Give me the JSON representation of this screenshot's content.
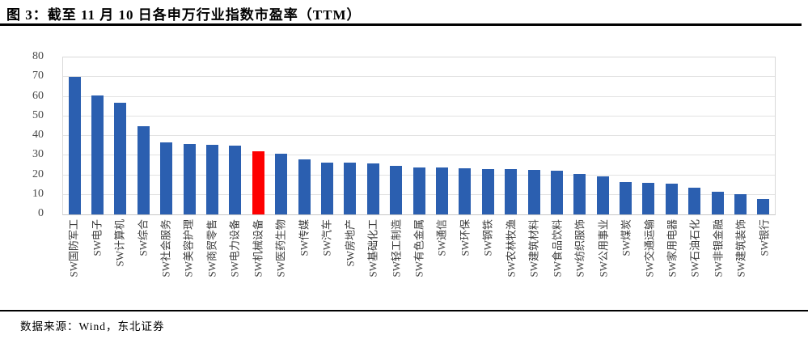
{
  "header": {
    "title": "图 3：截至 11 月 10 日各申万行业指数市盈率（TTM）"
  },
  "footer": {
    "source": "数据来源：Wind，东北证券"
  },
  "chart_data": {
    "type": "bar",
    "title": "截至11月10日各申万行业指数市盈率（TTM）",
    "xlabel": "",
    "ylabel": "",
    "ylim": [
      0,
      80
    ],
    "ytick_step": 10,
    "yticks": [
      0,
      10,
      20,
      30,
      40,
      50,
      60,
      70,
      80
    ],
    "grid": true,
    "legend": "none",
    "bar_color": "#2b5fb0",
    "highlight_color": "#fe0000",
    "highlight_index": 8,
    "categories": [
      "SW国防军工",
      "SW电子",
      "SW计算机",
      "SW综合",
      "SW社会服务",
      "SW美容护理",
      "SW商贸零售",
      "SW电力设备",
      "SW机械设备",
      "SW医药生物",
      "SW传媒",
      "SW汽车",
      "SW房地产",
      "SW基础化工",
      "SW轻工制造",
      "SW有色金属",
      "SW通信",
      "SW环保",
      "SW钢铁",
      "SW农林牧渔",
      "SW建筑材料",
      "SW食品饮料",
      "SW纺织服饰",
      "SW公用事业",
      "SW煤炭",
      "SW交通运输",
      "SW家用电器",
      "SW石油石化",
      "SW非银金融",
      "SW建筑装饰",
      "SW银行"
    ],
    "values": [
      70.3,
      60.7,
      56.8,
      45.0,
      36.8,
      35.9,
      35.5,
      35.0,
      32.1,
      30.8,
      27.9,
      26.6,
      26.2,
      26.0,
      24.8,
      23.9,
      23.8,
      23.5,
      23.3,
      22.9,
      22.6,
      22.3,
      20.7,
      19.4,
      16.6,
      15.9,
      15.5,
      13.5,
      11.5,
      10.4,
      7.7
    ]
  }
}
